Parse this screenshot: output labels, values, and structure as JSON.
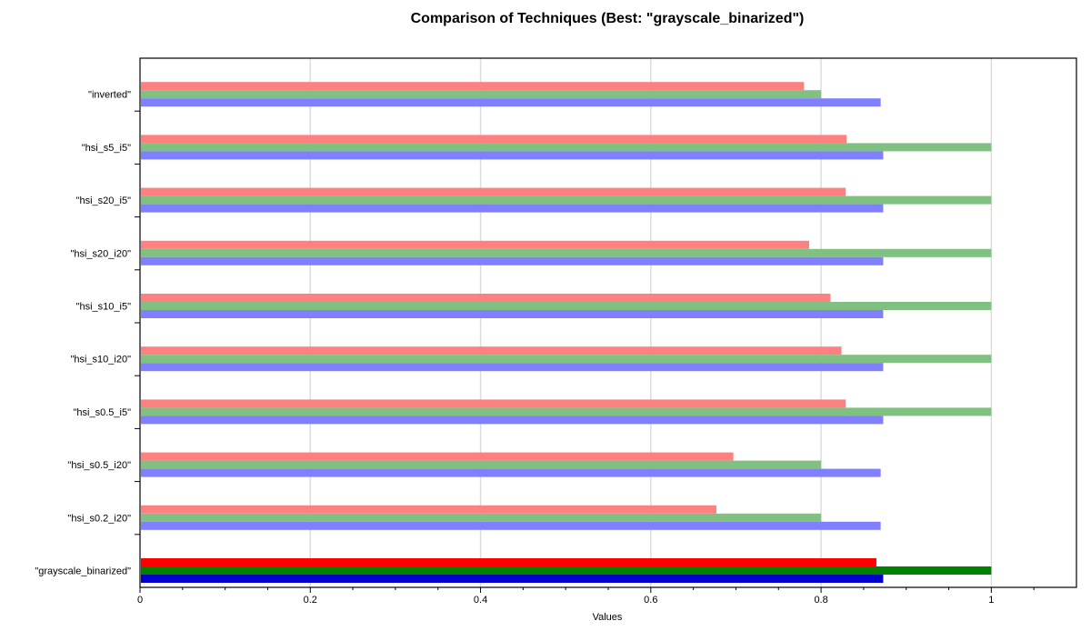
{
  "chart_data": {
    "type": "bar",
    "orientation": "horizontal",
    "title": "Comparison of Techniques (Best: \"grayscale_binarized\")",
    "xlabel": "Values",
    "ylabel": "",
    "xlim": [
      0,
      1.1
    ],
    "x_ticks": [
      0,
      0.2,
      0.4,
      0.6,
      0.8,
      1
    ],
    "x_tick_labels": [
      "0",
      "0.2",
      "0.4",
      "0.6",
      "0.8",
      "1"
    ],
    "grid": "vertical",
    "legend": "none",
    "categories": [
      "\"grayscale_binarized\"",
      "\"hsi_s0.2_i20\"",
      "\"hsi_s0.5_i20\"",
      "\"hsi_s0.5_i5\"",
      "\"hsi_s10_i20\"",
      "\"hsi_s10_i5\"",
      "\"hsi_s20_i20\"",
      "\"hsi_s20_i5\"",
      "\"hsi_s5_i5\"",
      "\"inverted\""
    ],
    "highlight_category": "\"grayscale_binarized\"",
    "series": [
      {
        "color": "#8080ff",
        "highlight_color": "#0000cc",
        "values": [
          0.873,
          0.87,
          0.87,
          0.873,
          0.873,
          0.873,
          0.873,
          0.873,
          0.873,
          0.87
        ]
      },
      {
        "color": "#80c080",
        "highlight_color": "#008000",
        "values": [
          1.0,
          0.8,
          0.8,
          1.0,
          1.0,
          1.0,
          1.0,
          1.0,
          1.0,
          0.8
        ]
      },
      {
        "color": "#ff8080",
        "highlight_color": "#ff0000",
        "values": [
          0.865,
          0.677,
          0.697,
          0.829,
          0.824,
          0.811,
          0.786,
          0.829,
          0.83,
          0.78
        ]
      }
    ]
  }
}
